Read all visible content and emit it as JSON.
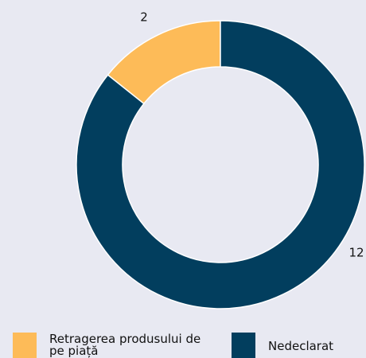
{
  "chart_data": {
    "type": "donut",
    "categories": [
      "Retragerea produsului de pe piață",
      "Nedeclarat"
    ],
    "values": [
      2,
      12
    ],
    "colors": [
      "#fdbb58",
      "#023e5e"
    ]
  }
}
